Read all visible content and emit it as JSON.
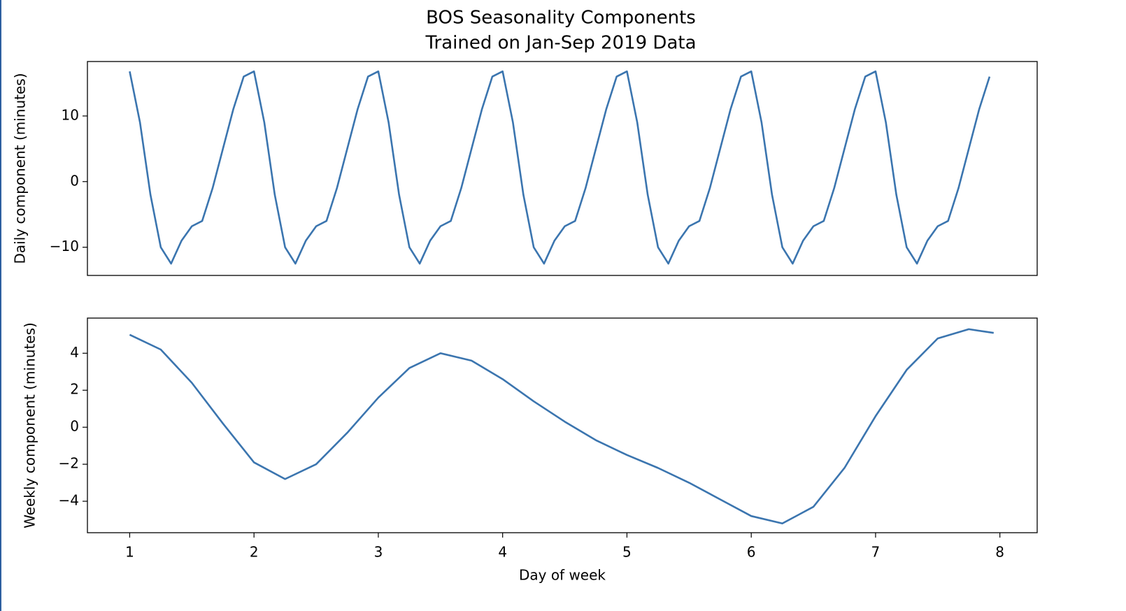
{
  "chart_data": [
    {
      "type": "line",
      "title": "BOS Seasonality Components",
      "subtitle": "Trained on Jan-Sep 2019 Data",
      "ylabel": "Daily component (minutes)",
      "color": "#3b75af",
      "xlim": [
        0.66,
        8.3
      ],
      "ylim": [
        -14.3,
        18.3
      ],
      "yticks": [
        {
          "value": -10,
          "label": "−10"
        },
        0,
        10
      ],
      "x": [
        1,
        1.083,
        1.167,
        1.25,
        1.333,
        1.417,
        1.5,
        1.583,
        1.667,
        1.75,
        1.833,
        1.917,
        2,
        2.083,
        2.167,
        2.25,
        2.333,
        2.417,
        2.5,
        2.583,
        2.667,
        2.75,
        2.833,
        2.917,
        3,
        3.083,
        3.167,
        3.25,
        3.333,
        3.417,
        3.5,
        3.583,
        3.667,
        3.75,
        3.833,
        3.917,
        4,
        4.083,
        4.167,
        4.25,
        4.333,
        4.417,
        4.5,
        4.583,
        4.667,
        4.75,
        4.833,
        4.917,
        5,
        5.083,
        5.167,
        5.25,
        5.333,
        5.417,
        5.5,
        5.583,
        5.667,
        5.75,
        5.833,
        5.917,
        6,
        6.083,
        6.167,
        6.25,
        6.333,
        6.417,
        6.5,
        6.583,
        6.667,
        6.75,
        6.833,
        6.917,
        7,
        7.083,
        7.167,
        7.25,
        7.333,
        7.417,
        7.5,
        7.583,
        7.667,
        7.75,
        7.833,
        7.917
      ],
      "values": [
        16.8,
        9,
        -2,
        -10,
        -12.5,
        -9,
        -6.8,
        -6,
        -1,
        5,
        11,
        16,
        16.8,
        9,
        -2,
        -10,
        -12.5,
        -9,
        -6.8,
        -6,
        -1,
        5,
        11,
        16,
        16.8,
        9,
        -2,
        -10,
        -12.5,
        -9,
        -6.8,
        -6,
        -1,
        5,
        11,
        16,
        16.8,
        9,
        -2,
        -10,
        -12.5,
        -9,
        -6.8,
        -6,
        -1,
        5,
        11,
        16,
        16.8,
        9,
        -2,
        -10,
        -12.5,
        -9,
        -6.8,
        -6,
        -1,
        5,
        11,
        16,
        16.8,
        9,
        -2,
        -10,
        -12.5,
        -9,
        -6.8,
        -6,
        -1,
        5,
        11,
        16,
        16.8,
        9,
        -2,
        -10,
        -12.5,
        -9,
        -6.8,
        -6,
        -1,
        5,
        11,
        16
      ]
    },
    {
      "type": "line",
      "ylabel": "Weekly component (minutes)",
      "xlabel": "Day of week",
      "color": "#3b75af",
      "xlim": [
        0.66,
        8.3
      ],
      "ylim": [
        -5.7,
        5.9
      ],
      "xticks": [
        1,
        2,
        3,
        4,
        5,
        6,
        7,
        8
      ],
      "yticks": [
        {
          "value": -4,
          "label": "−4"
        },
        {
          "value": -2,
          "label": "−2"
        },
        0,
        2,
        4
      ],
      "x": [
        1,
        1.25,
        1.5,
        1.75,
        2,
        2.25,
        2.5,
        2.75,
        3,
        3.25,
        3.5,
        3.75,
        4,
        4.25,
        4.5,
        4.75,
        5,
        5.25,
        5.5,
        5.75,
        6,
        6.25,
        6.5,
        6.75,
        7,
        7.25,
        7.5,
        7.75,
        7.95
      ],
      "values": [
        5,
        4.2,
        2.4,
        0.2,
        -1.9,
        -2.8,
        -2.0,
        -0.3,
        1.6,
        3.2,
        4.0,
        3.6,
        2.6,
        1.4,
        0.3,
        -0.7,
        -1.5,
        -2.2,
        -3.0,
        -3.9,
        -4.8,
        -5.2,
        -4.3,
        -2.2,
        0.6,
        3.1,
        4.8,
        5.3,
        5.1
      ]
    }
  ]
}
